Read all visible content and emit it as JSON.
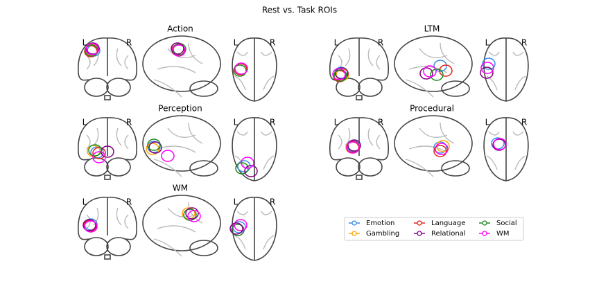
{
  "title": "Rest vs. Task ROIs",
  "panels": [
    {
      "title": "Action",
      "coronal": {
        "left": "L",
        "right": "R"
      },
      "axial": {
        "left": "L",
        "right": "R"
      }
    },
    {
      "title": "LTM",
      "coronal": {
        "left": "L",
        "right": "R"
      },
      "axial": {
        "left": "L",
        "right": "R"
      }
    },
    {
      "title": "Perception",
      "coronal": {
        "left": "L",
        "right": "R"
      },
      "axial": {
        "left": "L",
        "right": "R"
      }
    },
    {
      "title": "Procedural",
      "coronal": {
        "left": "L",
        "right": "R"
      },
      "axial": {
        "left": "L",
        "right": "R"
      }
    },
    {
      "title": "WM",
      "coronal": {
        "left": "L",
        "right": "R"
      },
      "axial": {
        "left": "L",
        "right": "R"
      }
    }
  ],
  "legend": [
    {
      "name": "Emotion",
      "color": "#3a8ee6"
    },
    {
      "name": "Gambling",
      "color": "#ffa500"
    },
    {
      "name": "Language",
      "color": "#e8231c"
    },
    {
      "name": "Relational",
      "color": "#800080"
    },
    {
      "name": "Social",
      "color": "#1e8a1e"
    },
    {
      "name": "WM",
      "color": "#ff00ff"
    }
  ]
}
